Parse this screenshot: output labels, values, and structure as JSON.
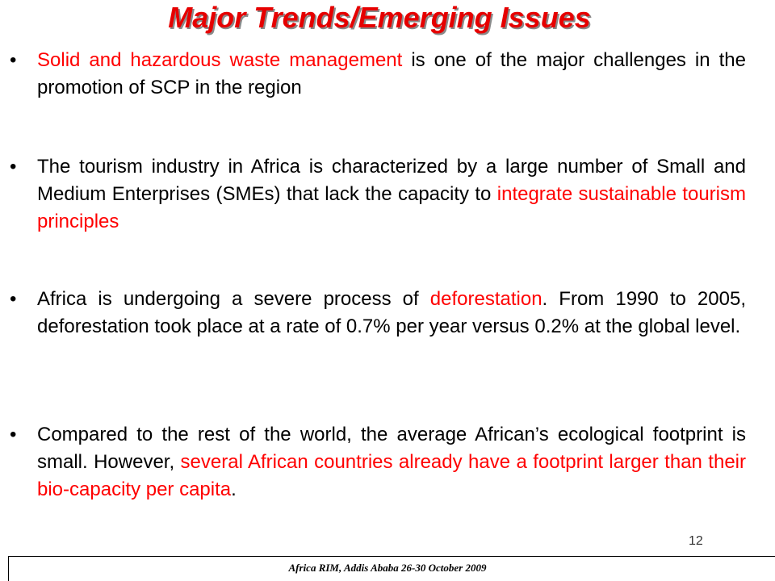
{
  "slide": {
    "title": "Major Trends/Emerging Issues",
    "bullet_glyph": "•",
    "bullets": [
      {
        "highlight": "Solid and hazardous waste management",
        "text_after": " is one of the major challenges in the promotion of SCP in the region"
      },
      {
        "text_before": "The tourism industry in Africa is characterized by a large number of Small and Medium Enterprises (SMEs) that lack the capacity to ",
        "highlight": "integrate sustainable tourism principles"
      },
      {
        "text_before": "Africa is undergoing a severe process of ",
        "highlight": "deforestation",
        "text_after": ". From 1990 to 2005, deforestation took place at a rate of 0.7% per year versus 0.2% at the global level."
      },
      {
        "text_before": "Compared to the rest of the world, the average African’s ecological footprint is small. However, ",
        "highlight": "several African countries already have a footprint larger than their bio-capacity per capita",
        "text_after": "."
      }
    ],
    "page_number": "12",
    "footer": "Africa RIM,  Addis Ababa 26-30 October 2009"
  },
  "colors": {
    "title": "#e60000",
    "highlight": "#ff0000",
    "body_text": "#000000"
  }
}
